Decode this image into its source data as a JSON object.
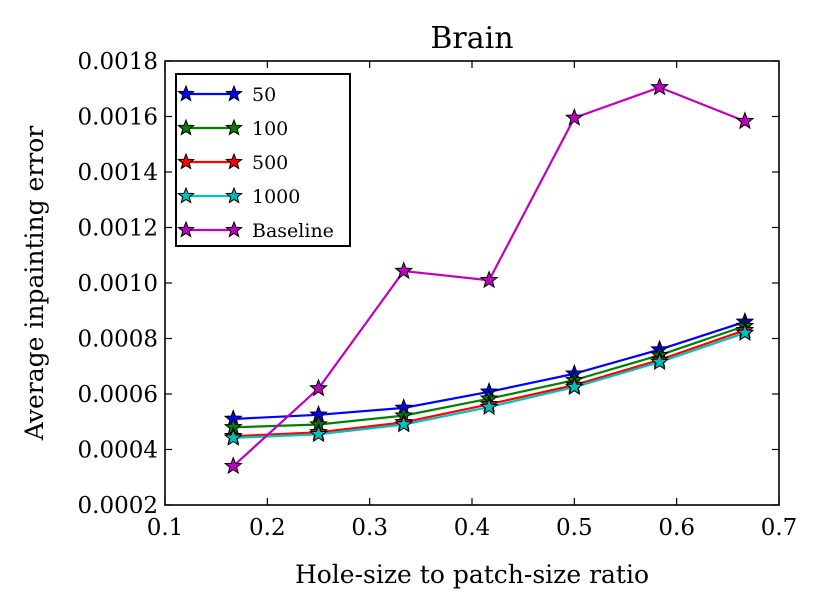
{
  "chart_data": {
    "type": "line",
    "title": "Brain",
    "xlabel": "Hole-size to patch-size ratio",
    "ylabel": "Average inpainting error",
    "xlim": [
      0.1,
      0.7
    ],
    "ylim": [
      0.0002,
      0.0018
    ],
    "xticks": [
      0.1,
      0.2,
      0.3,
      0.4,
      0.5,
      0.6,
      0.7
    ],
    "xtick_labels": [
      "0.1",
      "0.2",
      "0.3",
      "0.4",
      "0.5",
      "0.6",
      "0.7"
    ],
    "yticks": [
      0.0002,
      0.0004,
      0.0006,
      0.0008,
      0.001,
      0.0012,
      0.0014,
      0.0016,
      0.0018
    ],
    "ytick_labels": [
      "0.0002",
      "0.0004",
      "0.0006",
      "0.0008",
      "0.0010",
      "0.0012",
      "0.0014",
      "0.0016",
      "0.0018"
    ],
    "grid": false,
    "legend_position": "top-left",
    "marker": "star",
    "x": [
      0.1667,
      0.25,
      0.3333,
      0.4167,
      0.5,
      0.5833,
      0.6667
    ],
    "series": [
      {
        "name": "50",
        "color": "#0000ff",
        "values": [
          0.00051,
          0.000525,
          0.00055,
          0.000608,
          0.000673,
          0.00076,
          0.00086
        ]
      },
      {
        "name": "100",
        "color": "#008000",
        "values": [
          0.00048,
          0.00049,
          0.000522,
          0.000583,
          0.00065,
          0.00074,
          0.000845
        ]
      },
      {
        "name": "500",
        "color": "#ff0000",
        "values": [
          0.000448,
          0.000462,
          0.000498,
          0.000563,
          0.000632,
          0.000723,
          0.00083
        ]
      },
      {
        "name": "1000",
        "color": "#00bfbf",
        "values": [
          0.000442,
          0.000455,
          0.00049,
          0.000553,
          0.000625,
          0.000715,
          0.00082
        ]
      },
      {
        "name": "Baseline",
        "color": "#bf00bf",
        "values": [
          0.00034,
          0.00062,
          0.001043,
          0.00101,
          0.001595,
          0.001705,
          0.001583
        ]
      }
    ]
  }
}
